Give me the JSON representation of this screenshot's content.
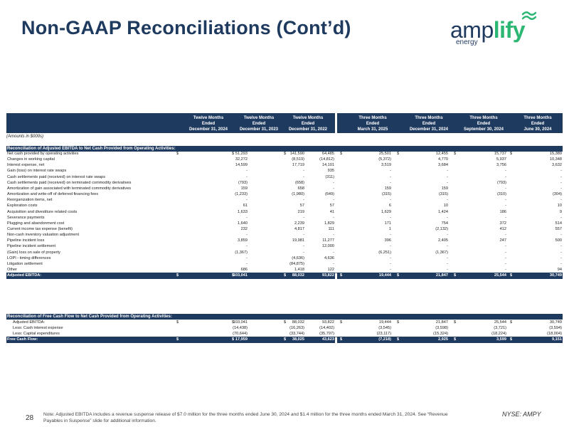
{
  "title": "Non-GAAP Reconciliations (Cont’d)",
  "logo": {
    "brand_plain": "amp",
    "brand_accent": "lify",
    "sub": "energy"
  },
  "columns": [
    [
      "Twelve Months",
      "Ended",
      "December 31, 2024"
    ],
    [
      "Twelve Months",
      "Ended",
      "December 31, 2023"
    ],
    [
      "Twelve Months",
      "Ended",
      "December 31, 2022"
    ],
    [
      "Three Months",
      "Ended",
      "March 31, 2025"
    ],
    [
      "Three Months",
      "Ended",
      "December 31, 2024"
    ],
    [
      "Three Months",
      "Ended",
      "September 30, 2024"
    ],
    [
      "Three Months",
      "Ended",
      "June 30, 2024"
    ]
  ],
  "amounts_label": "(Amounts in $000s)",
  "section1": {
    "title": "Reconciliation of Adjusted EBITDA to Net Cash Provided from Operating Activities:",
    "rows": [
      {
        "label": "Net cash provided by operating activities",
        "cur": true,
        "v": [
          "51,293",
          "141,590",
          "64,485",
          "25,501",
          "12,455",
          "15,737",
          "15,389"
        ]
      },
      {
        "label": "Changes in working capital",
        "v": [
          "32,272",
          "(8,519)",
          "(14,812)",
          "(5,372)",
          "4,770",
          "5,937",
          "10,348"
        ]
      },
      {
        "label": "Interest expense, net",
        "v": [
          "14,599",
          "17,719",
          "14,101",
          "3,519",
          "3,684",
          "3,756",
          "3,632"
        ]
      },
      {
        "label": "Gain (loss) on interest rate swaps",
        "v": [
          "-",
          "-",
          "935",
          "-",
          "-",
          "-",
          "-"
        ]
      },
      {
        "label": "Cash settlements paid (received) on interest rate swaps",
        "v": [
          "-",
          "-",
          "(311)",
          "-",
          "-",
          "-",
          "-"
        ]
      },
      {
        "label": "Cash settlements paid (received) on terminated commodity derivatives",
        "v": [
          "(793)",
          "(658)",
          "-",
          "-",
          "-",
          "(793)",
          "-"
        ]
      },
      {
        "label": "Amortization of gain associated with terminated commodity derivatives",
        "v": [
          "159",
          "658",
          "-",
          "159",
          "159",
          "-",
          "-"
        ]
      },
      {
        "label": "Amortization and write-off of deferred financing fees",
        "v": [
          "(1,233)",
          "(1,980)",
          "(649)",
          "(315)",
          "(315)",
          "(310)",
          "(304)"
        ]
      },
      {
        "label": "Reorganization items, net",
        "v": [
          "-",
          "-",
          "-",
          "-",
          "-",
          "-",
          "-"
        ]
      },
      {
        "label": "Exploration costs",
        "v": [
          "61",
          "57",
          "57",
          "6",
          "10",
          "-",
          "10"
        ]
      },
      {
        "label": "Acquisition and divestiture related costs",
        "v": [
          "1,633",
          "219",
          "41",
          "1,629",
          "1,424",
          "186",
          "9"
        ]
      },
      {
        "label": "Severance payments",
        "v": [
          "-",
          "-",
          "-",
          "-",
          "-",
          "-",
          "-"
        ]
      },
      {
        "label": "Plugging and abandonment cost",
        "v": [
          "1,640",
          "2,239",
          "1,829",
          "171",
          "754",
          "372",
          "514"
        ]
      },
      {
        "label": "Current income tax expense (benefit)",
        "v": [
          "232",
          "4,817",
          "111",
          "1",
          "(2,132)",
          "412",
          "557"
        ]
      },
      {
        "label": "Non-cash inventory valuation adjustment",
        "v": [
          "-",
          "-",
          "-",
          "-",
          "-",
          "-",
          "-"
        ]
      },
      {
        "label": "Pipeline incident loss",
        "v": [
          "3,859",
          "19,981",
          "11,277",
          "396",
          "2,405",
          "247",
          "500"
        ]
      },
      {
        "label": "Pipeline incident settlement",
        "v": [
          "-",
          "-",
          "12,000",
          "-",
          "-",
          "-",
          "-"
        ]
      },
      {
        "label": "(Gain) loss on sale of property",
        "v": [
          "(1,367)",
          "-",
          "-",
          "(6,251)",
          "(1,367)",
          "-",
          "-"
        ]
      },
      {
        "label": "LOPI - timing differences",
        "v": [
          "-",
          "(4,636)",
          "4,636",
          "-",
          "-",
          "-",
          "-"
        ]
      },
      {
        "label": "Litigation settlement",
        "v": [
          "-",
          "(84,875)",
          "-",
          "-",
          "-",
          "-",
          "-"
        ]
      },
      {
        "label": "Other",
        "v": [
          "686",
          "1,418",
          "122",
          "-",
          "-",
          "-",
          "94"
        ]
      }
    ],
    "total": {
      "label": "Adjusted EBITDA:",
      "v": [
        "103,041",
        "88,032",
        "93,822",
        "19,444",
        "21,847",
        "25,544",
        "30,749"
      ]
    }
  },
  "section2": {
    "title": "Reconciliation of Free Cash Flow to Net Cash Provided from Operating Activities:",
    "rows": [
      {
        "label": "Adjusted EBITDA:",
        "cur": true,
        "ind": true,
        "v": [
          "103,041",
          "88,032",
          "93,822",
          "19,444",
          "21,847",
          "25,544",
          "30,749"
        ]
      },
      {
        "label": "Less: Cash interest expense",
        "ind": true,
        "v": [
          "(14,438)",
          "(16,263)",
          "(14,402)",
          "(3,545)",
          "(3,598)",
          "(3,721)",
          "(3,594)"
        ]
      },
      {
        "label": "Less: Capital expenditures",
        "ind": true,
        "v": [
          "(70,644)",
          "(33,744)",
          "(35,797)",
          "(23,117)",
          "(15,324)",
          "(18,224)",
          "(18,004)"
        ]
      }
    ],
    "total": {
      "label": "Free Cash Flow:",
      "v": [
        "17,959",
        "38,025",
        "43,623",
        "(7,218)",
        "2,925",
        "3,599",
        "9,151"
      ]
    }
  },
  "currency": "$",
  "page_number": "28",
  "note": "Note: Adjusted EBITDA includes a revenue suspense release of $7.0 million for the three months ended June 30, 2024 and $1.4 million for the three months ended March 31, 2024. See “Revenue Payables in Suspense” slide for additional information.",
  "ticker": "NYSE: AMPY",
  "colors": {
    "navy": "#1f3a5f",
    "green": "#2bb673"
  }
}
